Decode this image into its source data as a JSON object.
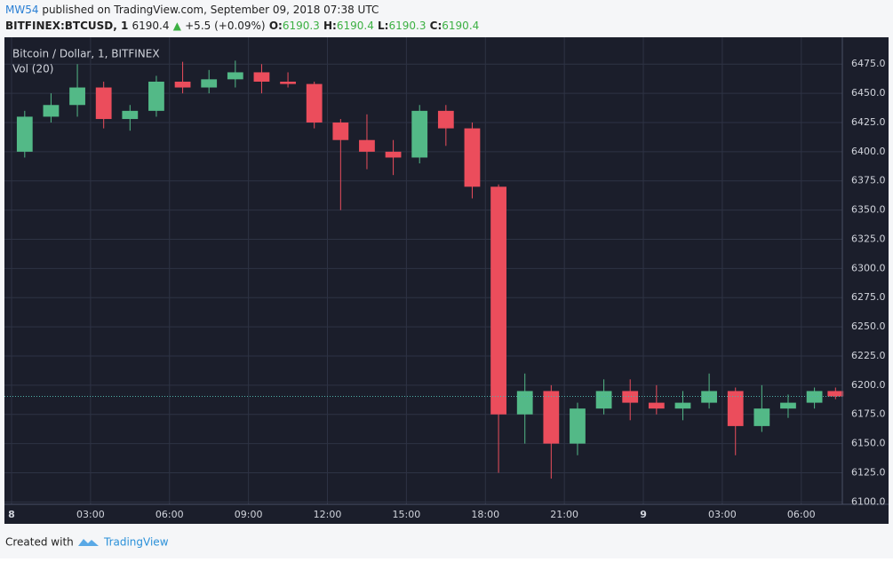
{
  "header": {
    "author": "MW54",
    "published": "published on TradingView.com, September 09, 2018 07:38 UTC",
    "symbol": "BITFINEX:BTCUSD, 1",
    "last": "6190.4",
    "arrow": "▲",
    "change": "+5.5 (+0.09%)",
    "o_label": "O:",
    "o": "6190.3",
    "h_label": "H:",
    "h": "6190.4",
    "l_label": "L:",
    "l": "6190.3",
    "c_label": "C:",
    "c": "6190.4"
  },
  "chart_data": {
    "type": "candlestick",
    "title": "Bitcoin / Dollar, 1, BITFINEX",
    "indicator": "Vol (20)",
    "up_color": "#53b987",
    "down_color": "#eb4d5c",
    "grid": true,
    "x": [
      0.5,
      1.5,
      2.5,
      3.5,
      4.5,
      5.5,
      6.5,
      7.5,
      8.5,
      9.5,
      10.5,
      11.5,
      12.5,
      13.5,
      14.5,
      15.5,
      16.5,
      17.5,
      18.5,
      19.5,
      20.5,
      21.5,
      22.5,
      23.5,
      24.5,
      25.5,
      26.5,
      27.5,
      28.5,
      29.5,
      30.5,
      31.3
    ],
    "open": [
      6400,
      6430,
      6440,
      6455,
      6428,
      6435,
      6460,
      6455,
      6462,
      6468,
      6460,
      6458,
      6425,
      6410,
      6400,
      6395,
      6435,
      6420,
      6370,
      6175,
      6195,
      6150,
      6180,
      6195,
      6185,
      6180,
      6185,
      6195,
      6165,
      6180,
      6185,
      6195
    ],
    "high": [
      6435,
      6450,
      6475,
      6460,
      6440,
      6465,
      6477,
      6470,
      6478,
      6475,
      6468,
      6460,
      6428,
      6432,
      6410,
      6440,
      6440,
      6425,
      6372,
      6210,
      6200,
      6185,
      6205,
      6205,
      6200,
      6195,
      6210,
      6198,
      6200,
      6192,
      6198,
      6198
    ],
    "low": [
      6395,
      6425,
      6430,
      6420,
      6418,
      6430,
      6450,
      6450,
      6455,
      6450,
      6455,
      6420,
      6350,
      6385,
      6380,
      6390,
      6405,
      6360,
      6125,
      6150,
      6120,
      6140,
      6175,
      6170,
      6175,
      6170,
      6180,
      6140,
      6160,
      6172,
      6180,
      6188
    ],
    "close": [
      6430,
      6440,
      6455,
      6428,
      6435,
      6460,
      6455,
      6462,
      6468,
      6460,
      6458,
      6425,
      6410,
      6400,
      6395,
      6435,
      6420,
      6370,
      6175,
      6195,
      6150,
      6180,
      6195,
      6185,
      6180,
      6185,
      6195,
      6165,
      6180,
      6185,
      6195,
      6190.4
    ],
    "xlim": [
      -0.27,
      31.56
    ],
    "xticks": [
      {
        "value": 0,
        "label": "8"
      },
      {
        "value": 3,
        "label": "03:00"
      },
      {
        "value": 6,
        "label": "06:00"
      },
      {
        "value": 9,
        "label": "09:00"
      },
      {
        "value": 12,
        "label": "12:00"
      },
      {
        "value": 15,
        "label": "15:00"
      },
      {
        "value": 18,
        "label": "18:00"
      },
      {
        "value": 21,
        "label": "21:00"
      },
      {
        "value": 24,
        "label": "9"
      },
      {
        "value": 27,
        "label": "03:00"
      },
      {
        "value": 30,
        "label": "06:00"
      }
    ],
    "ylim": [
      6098,
      6498
    ],
    "yticks": [
      {
        "value": 6100,
        "label": "6100.0"
      },
      {
        "value": 6125,
        "label": "6125.0"
      },
      {
        "value": 6150,
        "label": "6150.0"
      },
      {
        "value": 6175,
        "label": "6175.0"
      },
      {
        "value": 6200,
        "label": "6200.0"
      },
      {
        "value": 6225,
        "label": "6225.0"
      },
      {
        "value": 6250,
        "label": "6250.0"
      },
      {
        "value": 6275,
        "label": "6275.0"
      },
      {
        "value": 6300,
        "label": "6300.0"
      },
      {
        "value": 6325,
        "label": "6325.0"
      },
      {
        "value": 6350,
        "label": "6350.0"
      },
      {
        "value": 6375,
        "label": "6375.0"
      },
      {
        "value": 6400,
        "label": "6400.0"
      },
      {
        "value": 6425,
        "label": "6425.0"
      },
      {
        "value": 6450,
        "label": "6450.0"
      },
      {
        "value": 6475,
        "label": "6475.0"
      }
    ]
  },
  "footer": {
    "created": "Created with",
    "brand": "TradingView"
  }
}
